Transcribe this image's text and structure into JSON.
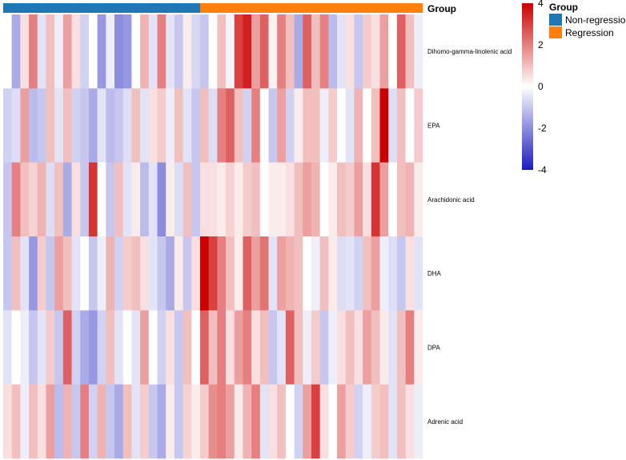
{
  "chart_data": {
    "type": "heatmap",
    "annotation_title": "Group",
    "groups": [
      {
        "name": "Non-regression",
        "color": "#1f77b4",
        "count": 23
      },
      {
        "name": "Regression",
        "color": "#ff7f0e",
        "count": 26
      }
    ],
    "rows": [
      "Dihomo-gamma-linolenic acid",
      "EPA",
      "Arachidonic acid",
      "DHA",
      "DPA",
      "Adrenic acid"
    ],
    "values": [
      [
        0.0,
        -1.5,
        0.5,
        2.0,
        -0.5,
        1.0,
        -0.3,
        1.5,
        0.5,
        -0.8,
        0.0,
        -1.8,
        -0.3,
        -2.0,
        -1.8,
        0.0,
        1.2,
        -0.5,
        2.0,
        -0.5,
        -1.0,
        0.3,
        -0.7,
        -1.0,
        0.0,
        1.0,
        -0.2,
        3.0,
        3.5,
        1.5,
        2.5,
        0.2,
        2.0,
        1.0,
        -1.5,
        2.5,
        1.0,
        2.0,
        -1.2,
        -0.5,
        0.5,
        -1.0,
        0.8,
        0.5,
        1.5,
        0.0,
        2.5,
        1.0,
        -0.3
      ],
      [
        -0.8,
        -0.6,
        1.5,
        -1.2,
        -1.0,
        1.0,
        -0.5,
        1.0,
        -0.8,
        -1.0,
        -1.5,
        -0.5,
        -1.2,
        -1.0,
        -0.6,
        1.0,
        -0.5,
        0.5,
        0.8,
        -0.3,
        1.0,
        -0.5,
        -1.0,
        1.0,
        -0.6,
        2.0,
        2.5,
        1.0,
        -0.8,
        2.0,
        0.0,
        -1.0,
        1.5,
        -0.8,
        0.3,
        1.0,
        1.0,
        -0.3,
        0.8,
        0.0,
        -0.5,
        1.2,
        0.0,
        1.0,
        4.0,
        -0.6,
        1.0,
        0.0,
        0.8
      ],
      [
        -1.0,
        2.0,
        1.0,
        0.7,
        1.2,
        -0.6,
        1.0,
        -1.5,
        0.5,
        -1.0,
        3.2,
        0.0,
        -1.0,
        1.0,
        -0.5,
        0.3,
        -1.2,
        -0.5,
        -2.0,
        0.3,
        -0.6,
        1.0,
        -1.0,
        0.5,
        0.5,
        0.3,
        0.7,
        0.3,
        0.8,
        1.0,
        0.0,
        0.3,
        0.3,
        0.5,
        1.0,
        1.5,
        1.2,
        0.0,
        0.3,
        1.0,
        0.8,
        1.5,
        0.5,
        3.2,
        1.5,
        0.0,
        1.0,
        1.2,
        0.3
      ],
      [
        -1.0,
        1.0,
        -0.5,
        -1.8,
        0.8,
        -1.0,
        1.5,
        1.0,
        -0.5,
        0.0,
        -1.0,
        -0.3,
        1.2,
        -0.8,
        0.8,
        1.0,
        0.5,
        -0.5,
        -1.0,
        -1.5,
        0.3,
        -1.0,
        0.5,
        4.0,
        3.0,
        2.0,
        1.0,
        0.3,
        2.5,
        1.5,
        2.2,
        -0.5,
        1.5,
        1.2,
        1.0,
        0.0,
        -0.3,
        1.0,
        0.3,
        -0.6,
        -0.5,
        -0.8,
        1.0,
        1.5,
        -0.3,
        -0.6,
        -1.0,
        0.5,
        -0.5
      ],
      [
        -0.5,
        0.0,
        -0.3,
        -1.0,
        -0.5,
        0.8,
        -1.0,
        2.5,
        -0.8,
        -1.5,
        -1.8,
        -0.8,
        1.0,
        -0.5,
        0.0,
        -0.5,
        1.5,
        0.0,
        -0.8,
        0.5,
        -1.0,
        1.0,
        0.0,
        2.5,
        1.0,
        2.0,
        0.5,
        1.5,
        2.0,
        0.5,
        1.0,
        -1.0,
        -0.5,
        2.5,
        1.0,
        -0.3,
        0.8,
        -1.0,
        -0.3,
        0.5,
        1.0,
        0.5,
        1.5,
        1.0,
        0.3,
        -0.5,
        1.0,
        2.0,
        0.3
      ],
      [
        0.5,
        1.0,
        -0.3,
        1.0,
        0.5,
        1.5,
        -1.2,
        1.2,
        -1.0,
        2.0,
        -0.8,
        1.2,
        -1.0,
        -1.5,
        1.0,
        -0.5,
        0.8,
        -1.0,
        -1.5,
        0.3,
        -1.0,
        0.7,
        0.3,
        0.8,
        1.8,
        2.0,
        1.5,
        0.3,
        1.2,
        2.0,
        -0.5,
        0.5,
        1.0,
        0.0,
        -0.8,
        1.5,
        3.0,
        0.5,
        0.0,
        1.5,
        0.8,
        -0.8,
        -0.3,
        0.8,
        1.0,
        -0.5,
        1.0,
        0.5,
        -0.3
      ]
    ],
    "color_scale": {
      "min": -4,
      "max": 4,
      "low": "#1b1bbf",
      "mid": "#ffffff",
      "high": "#cc0000",
      "ticks": [
        4,
        2,
        0,
        -2,
        -4
      ]
    },
    "legend_title": "Group"
  }
}
